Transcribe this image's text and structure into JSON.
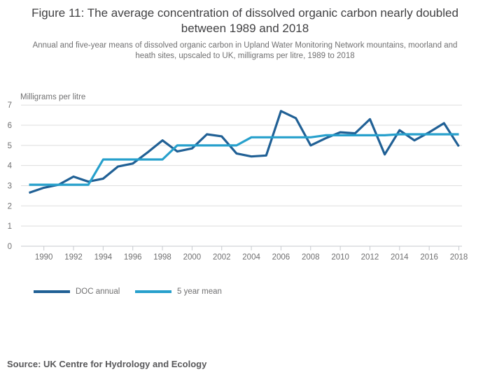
{
  "figure": {
    "title": "Figure 11: The average concentration of dissolved organic carbon nearly doubled between 1989 and 2018",
    "subtitle": "Annual and five-year means of dissolved organic carbon in Upland Water Monitoring Network mountains, moorland and heath sites, upscaled to UK, milligrams per litre, 1989 to 2018",
    "source": "Source: UK Centre for Hydrology and Ecology"
  },
  "legend": [
    {
      "label": "DOC annual",
      "color": "#206095"
    },
    {
      "label": "5 year mean",
      "color": "#27A0CC"
    }
  ],
  "chart_data": {
    "type": "line",
    "title": "Figure 11: The average concentration of dissolved organic carbon nearly doubled between 1989 and 2018",
    "xlabel": "",
    "ylabel": "Milligrams per litre",
    "ylim": [
      0,
      7
    ],
    "yticks": [
      0,
      1,
      2,
      3,
      4,
      5,
      6,
      7
    ],
    "xticks": [
      1990,
      1992,
      1994,
      1996,
      1998,
      2000,
      2002,
      2004,
      2006,
      2008,
      2010,
      2012,
      2014,
      2016,
      2018
    ],
    "grid": "horizontal",
    "legend_position": "bottom-left",
    "x": [
      1989,
      1990,
      1991,
      1992,
      1993,
      1994,
      1995,
      1996,
      1997,
      1998,
      1999,
      2000,
      2001,
      2002,
      2003,
      2004,
      2005,
      2006,
      2007,
      2008,
      2009,
      2010,
      2011,
      2012,
      2013,
      2014,
      2015,
      2016,
      2017,
      2018
    ],
    "series": [
      {
        "name": "DOC annual",
        "color": "#206095",
        "values": [
          2.65,
          2.9,
          3.05,
          3.45,
          3.2,
          3.35,
          3.95,
          4.1,
          4.65,
          5.25,
          4.7,
          4.85,
          5.55,
          5.45,
          4.6,
          4.45,
          4.5,
          6.7,
          6.35,
          5.0,
          5.35,
          5.65,
          5.6,
          6.3,
          4.55,
          5.75,
          5.25,
          5.65,
          6.1,
          4.95
        ]
      },
      {
        "name": "5 year mean",
        "color": "#27A0CC",
        "values": [
          3.05,
          3.05,
          3.05,
          3.05,
          3.05,
          4.3,
          4.3,
          4.3,
          4.3,
          4.3,
          5.0,
          5.0,
          5.0,
          5.0,
          5.0,
          5.4,
          5.4,
          5.4,
          5.4,
          5.4,
          5.5,
          5.5,
          5.5,
          5.5,
          5.5,
          5.55,
          5.55,
          5.55,
          5.55,
          5.55
        ]
      }
    ]
  }
}
